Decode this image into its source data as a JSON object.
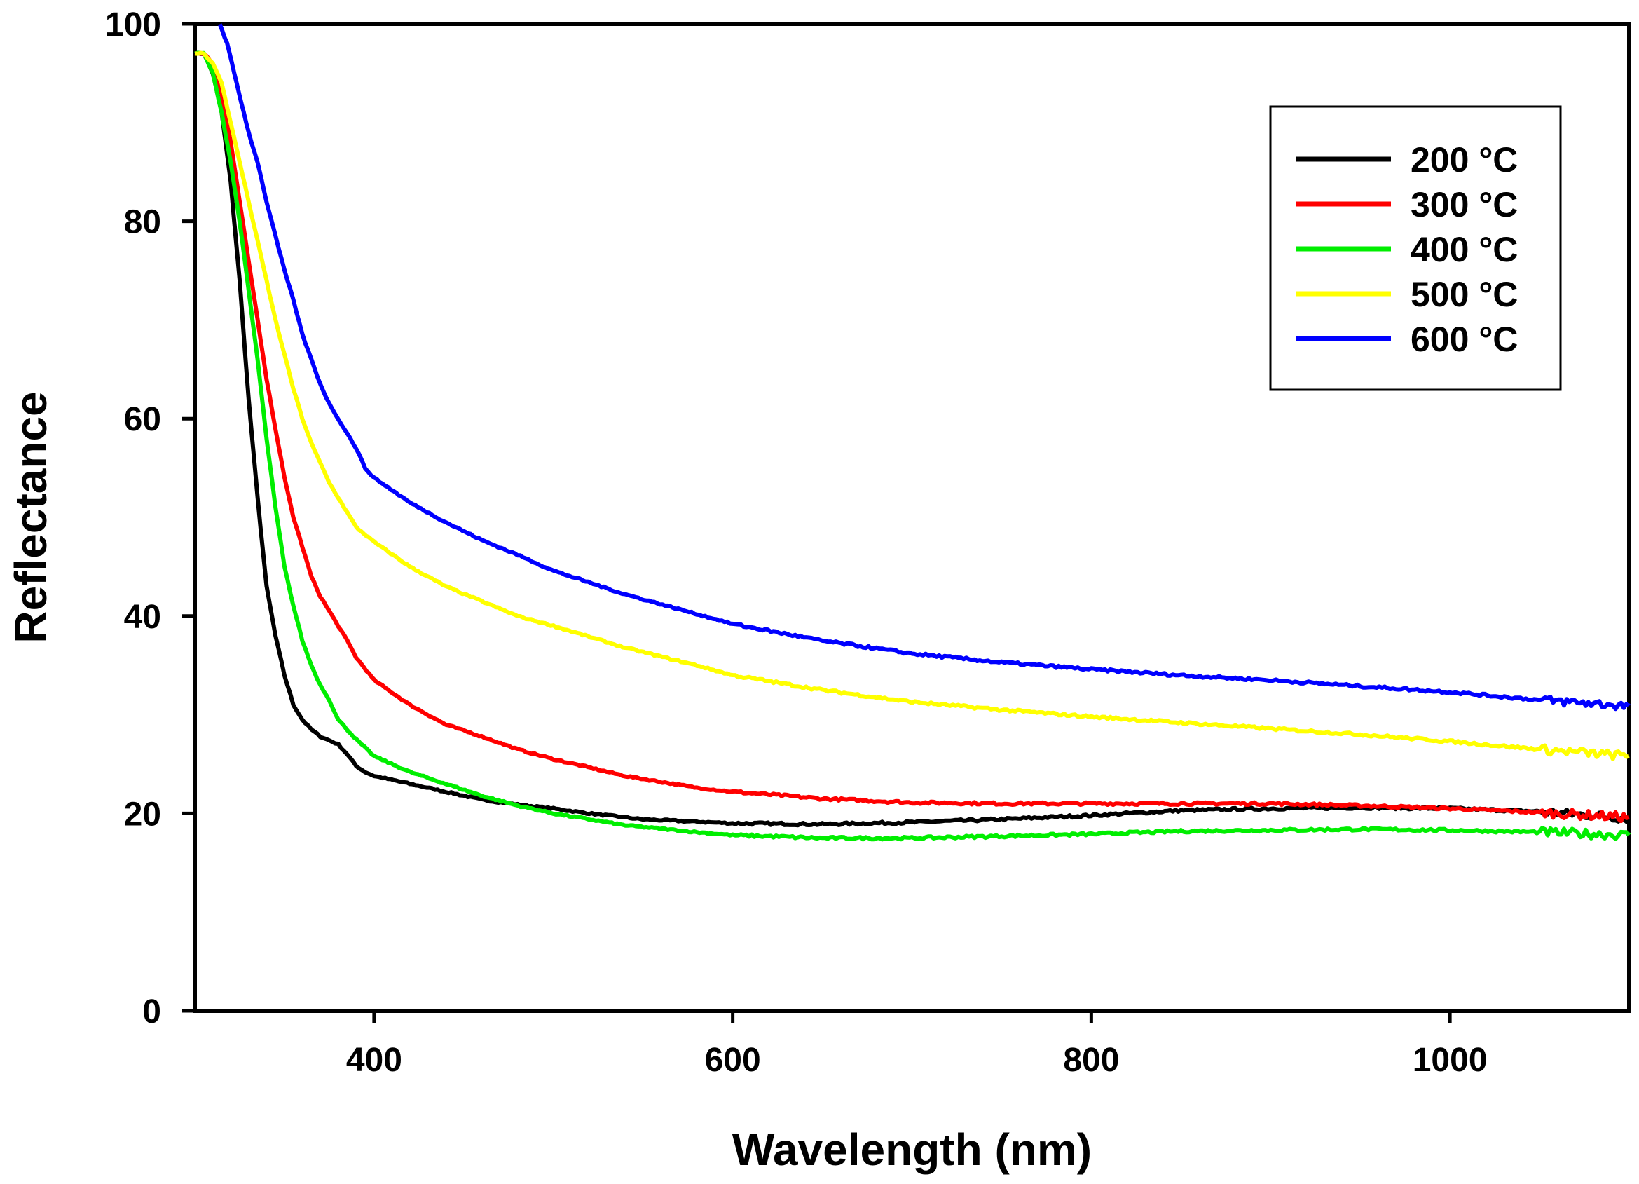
{
  "chart_data": {
    "type": "line",
    "title": "",
    "xlabel": "Wavelength (nm)",
    "ylabel": "Reflectance",
    "xlim": [
      300,
      1100
    ],
    "ylim": [
      0,
      100
    ],
    "xticks": [
      400,
      600,
      800,
      1000
    ],
    "yticks": [
      0,
      20,
      40,
      60,
      80,
      100
    ],
    "grid": false,
    "legend_position": "top-right",
    "series": [
      {
        "name": "200 °C",
        "color": "#000000",
        "points": [
          [
            300,
            97
          ],
          [
            305,
            97
          ],
          [
            310,
            95
          ],
          [
            315,
            91
          ],
          [
            320,
            84
          ],
          [
            325,
            74
          ],
          [
            330,
            62
          ],
          [
            335,
            52
          ],
          [
            340,
            43
          ],
          [
            345,
            38
          ],
          [
            350,
            34
          ],
          [
            355,
            31
          ],
          [
            360,
            29.5
          ],
          [
            365,
            28.5
          ],
          [
            370,
            27.8
          ],
          [
            375,
            27.4
          ],
          [
            380,
            27
          ],
          [
            385,
            26
          ],
          [
            390,
            24.8
          ],
          [
            395,
            24.2
          ],
          [
            400,
            23.8
          ],
          [
            420,
            23
          ],
          [
            440,
            22.2
          ],
          [
            460,
            21.4
          ],
          [
            480,
            20.9
          ],
          [
            500,
            20.5
          ],
          [
            520,
            20
          ],
          [
            550,
            19.4
          ],
          [
            600,
            19
          ],
          [
            650,
            18.9
          ],
          [
            700,
            19.1
          ],
          [
            750,
            19.4
          ],
          [
            800,
            19.8
          ],
          [
            850,
            20.3
          ],
          [
            900,
            20.5
          ],
          [
            950,
            20.6
          ],
          [
            1000,
            20.5
          ],
          [
            1050,
            20.2
          ],
          [
            1100,
            19.5
          ]
        ]
      },
      {
        "name": "300 °C",
        "color": "#ff0000",
        "points": [
          [
            300,
            97
          ],
          [
            305,
            97
          ],
          [
            310,
            96
          ],
          [
            315,
            93
          ],
          [
            320,
            88
          ],
          [
            325,
            82
          ],
          [
            330,
            76
          ],
          [
            335,
            70
          ],
          [
            340,
            64
          ],
          [
            345,
            59
          ],
          [
            350,
            54
          ],
          [
            355,
            50
          ],
          [
            360,
            47
          ],
          [
            365,
            44
          ],
          [
            370,
            42
          ],
          [
            375,
            40.5
          ],
          [
            380,
            39
          ],
          [
            385,
            37.5
          ],
          [
            390,
            35.8
          ],
          [
            400,
            33.5
          ],
          [
            420,
            31
          ],
          [
            440,
            29
          ],
          [
            460,
            27.8
          ],
          [
            480,
            26.5
          ],
          [
            500,
            25.5
          ],
          [
            540,
            23.8
          ],
          [
            580,
            22.6
          ],
          [
            600,
            22.2
          ],
          [
            650,
            21.5
          ],
          [
            700,
            21.1
          ],
          [
            750,
            21
          ],
          [
            800,
            21
          ],
          [
            850,
            21
          ],
          [
            900,
            21
          ],
          [
            950,
            20.8
          ],
          [
            1000,
            20.5
          ],
          [
            1050,
            20.1
          ],
          [
            1100,
            19.6
          ]
        ]
      },
      {
        "name": "400 °C",
        "color": "#00ee00",
        "points": [
          [
            300,
            97
          ],
          [
            305,
            97
          ],
          [
            310,
            95
          ],
          [
            315,
            91
          ],
          [
            320,
            86
          ],
          [
            325,
            80
          ],
          [
            330,
            73
          ],
          [
            335,
            66
          ],
          [
            340,
            58
          ],
          [
            345,
            51
          ],
          [
            350,
            45
          ],
          [
            355,
            41
          ],
          [
            360,
            37.5
          ],
          [
            365,
            35
          ],
          [
            370,
            33
          ],
          [
            375,
            31.5
          ],
          [
            380,
            29.5
          ],
          [
            390,
            27.5
          ],
          [
            400,
            25.8
          ],
          [
            420,
            24.2
          ],
          [
            440,
            23
          ],
          [
            460,
            21.8
          ],
          [
            480,
            20.8
          ],
          [
            500,
            20
          ],
          [
            540,
            18.8
          ],
          [
            580,
            18.1
          ],
          [
            600,
            17.8
          ],
          [
            650,
            17.5
          ],
          [
            700,
            17.5
          ],
          [
            750,
            17.7
          ],
          [
            800,
            17.9
          ],
          [
            850,
            18.2
          ],
          [
            900,
            18.3
          ],
          [
            950,
            18.4
          ],
          [
            1000,
            18.3
          ],
          [
            1050,
            18.1
          ],
          [
            1100,
            17.8
          ]
        ]
      },
      {
        "name": "500 °C",
        "color": "#ffff00",
        "points": [
          [
            300,
            97
          ],
          [
            305,
            97
          ],
          [
            310,
            96
          ],
          [
            315,
            94
          ],
          [
            320,
            90
          ],
          [
            325,
            86
          ],
          [
            330,
            82
          ],
          [
            335,
            78
          ],
          [
            340,
            74
          ],
          [
            345,
            70
          ],
          [
            350,
            66.5
          ],
          [
            355,
            63
          ],
          [
            360,
            60
          ],
          [
            365,
            57.5
          ],
          [
            370,
            55.5
          ],
          [
            375,
            53.5
          ],
          [
            380,
            52
          ],
          [
            385,
            50.5
          ],
          [
            390,
            49
          ],
          [
            400,
            47.5
          ],
          [
            420,
            45
          ],
          [
            440,
            43
          ],
          [
            460,
            41.5
          ],
          [
            480,
            40
          ],
          [
            500,
            39
          ],
          [
            540,
            36.8
          ],
          [
            580,
            35
          ],
          [
            600,
            34
          ],
          [
            650,
            32.5
          ],
          [
            700,
            31.3
          ],
          [
            750,
            30.5
          ],
          [
            800,
            29.8
          ],
          [
            850,
            29.2
          ],
          [
            900,
            28.6
          ],
          [
            950,
            28
          ],
          [
            1000,
            27.3
          ],
          [
            1050,
            26.5
          ],
          [
            1100,
            25.8
          ]
        ]
      },
      {
        "name": "600 °C",
        "color": "#0000ff",
        "points": [
          [
            314,
            100
          ],
          [
            318,
            98
          ],
          [
            322,
            95
          ],
          [
            326,
            92
          ],
          [
            330,
            89
          ],
          [
            335,
            86
          ],
          [
            340,
            82
          ],
          [
            345,
            78.5
          ],
          [
            350,
            75
          ],
          [
            355,
            72
          ],
          [
            360,
            68.5
          ],
          [
            365,
            66
          ],
          [
            370,
            63.5
          ],
          [
            375,
            61.5
          ],
          [
            380,
            60
          ],
          [
            385,
            58.5
          ],
          [
            390,
            57
          ],
          [
            395,
            55
          ],
          [
            400,
            54
          ],
          [
            420,
            51.5
          ],
          [
            440,
            49.5
          ],
          [
            460,
            47.7
          ],
          [
            480,
            46.2
          ],
          [
            500,
            44.6
          ],
          [
            540,
            42.2
          ],
          [
            580,
            40.2
          ],
          [
            600,
            39.2
          ],
          [
            650,
            37.5
          ],
          [
            700,
            36.2
          ],
          [
            750,
            35.3
          ],
          [
            800,
            34.6
          ],
          [
            850,
            34
          ],
          [
            900,
            33.5
          ],
          [
            950,
            32.9
          ],
          [
            1000,
            32.3
          ],
          [
            1050,
            31.5
          ],
          [
            1100,
            30.9
          ]
        ]
      }
    ]
  }
}
